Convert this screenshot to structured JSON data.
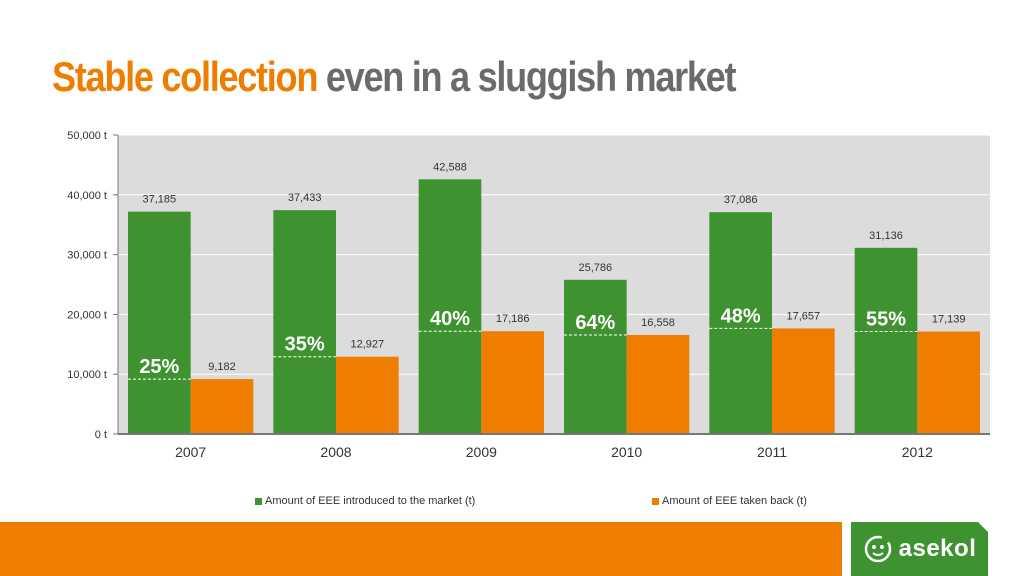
{
  "slide": {
    "title_accent": "Stable collection",
    "title_rest": "even in a sluggish market"
  },
  "brand": {
    "logo_text": "asekol",
    "colors": {
      "green": "#3f9230",
      "orange": "#ef7d00",
      "title_gray": "#6b6b6b",
      "plot_bg": "#dcdcdc"
    }
  },
  "chart_data": {
    "type": "bar",
    "categories": [
      "2007",
      "2008",
      "2009",
      "2010",
      "2011",
      "2012"
    ],
    "series": [
      {
        "name": "Amount of EEE introduced to the market (t)",
        "color": "#3f9230",
        "values": [
          37185,
          37433,
          42588,
          25786,
          37086,
          31136
        ],
        "labels": [
          "37,185",
          "37,433",
          "42,588",
          "25,786",
          "37,086",
          "31,136"
        ]
      },
      {
        "name": "Amount of EEE taken back (t)",
        "color": "#ef7d00",
        "values": [
          9182,
          12927,
          17186,
          16558,
          17657,
          17139
        ],
        "labels": [
          "9,182",
          "12,927",
          "17,186",
          "16,558",
          "17,657",
          "17,139"
        ]
      }
    ],
    "collection_rate_labels": [
      "25%",
      "35%",
      "40%",
      "64%",
      "48%",
      "55%"
    ],
    "y_ticks": [
      0,
      10000,
      20000,
      30000,
      40000,
      50000
    ],
    "y_tick_labels": [
      "0 t",
      "10,000 t",
      "20,000 t",
      "30,000 t",
      "40,000 t",
      "50,000 t"
    ],
    "ylim": [
      0,
      50000
    ],
    "grid": true,
    "legend_position": "bottom"
  }
}
